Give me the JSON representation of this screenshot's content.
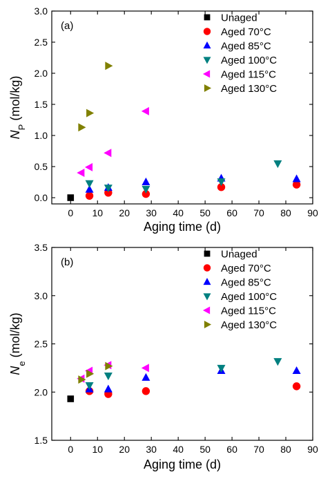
{
  "figure": {
    "width": 465,
    "height": 693
  },
  "legend_entries": [
    {
      "label": "Unaged",
      "marker": "square",
      "color": "#000000"
    },
    {
      "label": "Aged 70°C",
      "marker": "circle",
      "color": "#ff0000"
    },
    {
      "label": "Aged 85°C",
      "marker": "triangle-up",
      "color": "#0000ff"
    },
    {
      "label": "Aged 100°C",
      "marker": "triangle-down",
      "color": "#008080"
    },
    {
      "label": "Aged 115°C",
      "marker": "triangle-left",
      "color": "#ff00ff"
    },
    {
      "label": "Aged 130°C",
      "marker": "triangle-right",
      "color": "#808000"
    }
  ],
  "chart_data": [
    {
      "panel_label": "(a)",
      "type": "scatter",
      "xlabel": "Aging time (d)",
      "ylabel_symbol": "N",
      "ylabel_sub": "P",
      "ylabel_unit": " (mol/kg)",
      "xlim": [
        -7,
        90
      ],
      "ylim": [
        -0.1,
        3.0
      ],
      "xticks": [
        0,
        10,
        20,
        30,
        40,
        50,
        60,
        70,
        80,
        90
      ],
      "yticks": [
        0.0,
        0.5,
        1.0,
        1.5,
        2.0,
        2.5,
        3.0
      ],
      "ytick_labels": [
        "0.0",
        "0.5",
        "1.0",
        "1.5",
        "2.0",
        "2.5",
        "3.0"
      ],
      "legend_position": "top-right",
      "series": [
        {
          "name": "Unaged",
          "points": [
            [
              0,
              0.0
            ]
          ]
        },
        {
          "name": "Aged 70°C",
          "points": [
            [
              7,
              0.03
            ],
            [
              14,
              0.08
            ],
            [
              28,
              0.06
            ],
            [
              56,
              0.17
            ],
            [
              84,
              0.21
            ]
          ]
        },
        {
          "name": "Aged 85°C",
          "points": [
            [
              7,
              0.13
            ],
            [
              14,
              0.16
            ],
            [
              28,
              0.25
            ],
            [
              56,
              0.31
            ],
            [
              84,
              0.3
            ]
          ]
        },
        {
          "name": "Aged 100°C",
          "points": [
            [
              7,
              0.23
            ],
            [
              14,
              0.16
            ],
            [
              28,
              0.14
            ],
            [
              56,
              0.26
            ],
            [
              77,
              0.55
            ]
          ]
        },
        {
          "name": "Aged 115°C",
          "points": [
            [
              4,
              0.4
            ],
            [
              7,
              0.49
            ],
            [
              14,
              0.72
            ],
            [
              28,
              1.39
            ]
          ]
        },
        {
          "name": "Aged 130°C",
          "points": [
            [
              4,
              1.13
            ],
            [
              7,
              1.36
            ],
            [
              14,
              2.12
            ]
          ]
        }
      ]
    },
    {
      "panel_label": "(b)",
      "type": "scatter",
      "xlabel": "Aging time (d)",
      "ylabel_symbol": "N",
      "ylabel_sub": "e",
      "ylabel_unit": " (mol/kg)",
      "xlim": [
        -7,
        90
      ],
      "ylim": [
        1.5,
        3.5
      ],
      "xticks": [
        0,
        10,
        20,
        30,
        40,
        50,
        60,
        70,
        80,
        90
      ],
      "yticks": [
        1.5,
        2.0,
        2.5,
        3.0,
        3.5
      ],
      "ytick_labels": [
        "1.5",
        "2.0",
        "2.5",
        "3.0",
        "3.5"
      ],
      "legend_position": "top-right",
      "series": [
        {
          "name": "Unaged",
          "points": [
            [
              0,
              1.93
            ]
          ]
        },
        {
          "name": "Aged 70°C",
          "points": [
            [
              7,
              2.01
            ],
            [
              14,
              1.98
            ],
            [
              28,
              2.01
            ],
            [
              84,
              2.06
            ]
          ]
        },
        {
          "name": "Aged 85°C",
          "points": [
            [
              7,
              2.03
            ],
            [
              14,
              2.03
            ],
            [
              28,
              2.15
            ],
            [
              56,
              2.22
            ],
            [
              84,
              2.22
            ]
          ]
        },
        {
          "name": "Aged 100°C",
          "points": [
            [
              7,
              2.07
            ],
            [
              14,
              2.17
            ],
            [
              56,
              2.25
            ],
            [
              77,
              2.32
            ]
          ]
        },
        {
          "name": "Aged 115°C",
          "points": [
            [
              4,
              2.14
            ],
            [
              7,
              2.22
            ],
            [
              14,
              2.28
            ],
            [
              28,
              2.25
            ]
          ]
        },
        {
          "name": "Aged 130°C",
          "points": [
            [
              4,
              2.13
            ],
            [
              7,
              2.19
            ],
            [
              14,
              2.27
            ]
          ]
        }
      ]
    }
  ]
}
